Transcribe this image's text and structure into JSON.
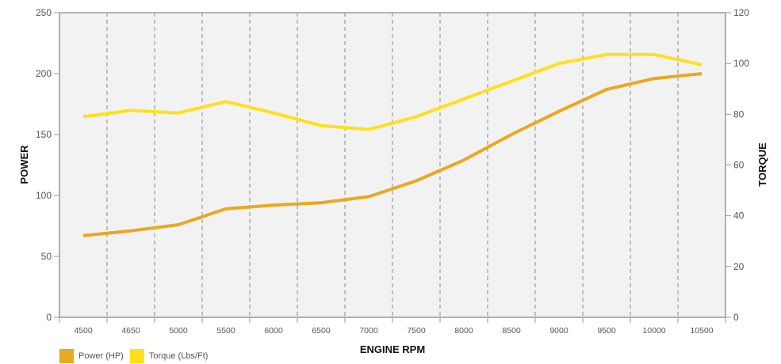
{
  "chart_data": {
    "type": "line",
    "xlabel": "ENGINE RPM",
    "ylabel": "POWER",
    "y2label": "TORQUE",
    "categories": [
      "4500",
      "4650",
      "5000",
      "5500",
      "6000",
      "6500",
      "7000",
      "7500",
      "8000",
      "8500",
      "9000",
      "9500",
      "10000",
      "10500"
    ],
    "ylim": [
      0,
      250
    ],
    "y2lim": [
      0,
      120
    ],
    "yticks": [
      0,
      50,
      100,
      150,
      200,
      250
    ],
    "y2ticks": [
      0,
      20,
      40,
      60,
      80,
      100,
      120
    ],
    "grid": "vertical dashed",
    "legend_position": "bottom-left",
    "series": [
      {
        "name": "Power (HP)",
        "axis": "left",
        "color": "#E8A820",
        "values": [
          67,
          71,
          76,
          89,
          92,
          94,
          99,
          112,
          129,
          150,
          169,
          187,
          196,
          200
        ]
      },
      {
        "name": "Torque (Lbs/Ft)",
        "axis": "right",
        "color": "#FFE01A",
        "values": [
          79,
          81.5,
          80.5,
          85,
          80.5,
          75.5,
          74,
          79,
          86,
          93,
          100,
          103.5,
          103.5,
          99.5
        ]
      }
    ]
  }
}
